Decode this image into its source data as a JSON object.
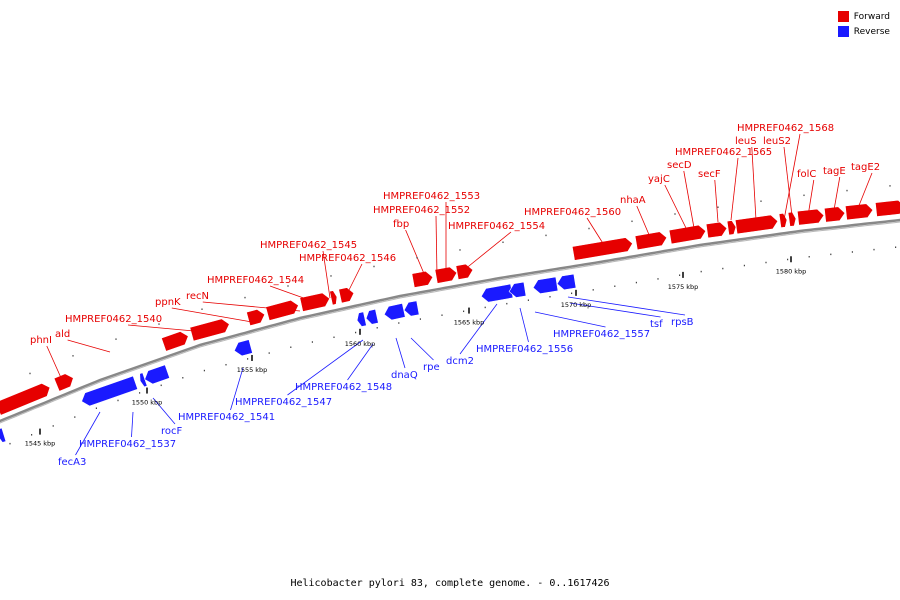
{
  "colors": {
    "forward": "#e60000",
    "reverse": "#1a1aff",
    "backbone": "#888888",
    "tick": "#000000"
  },
  "legend": {
    "forward_label": "Forward",
    "reverse_label": "Reverse"
  },
  "caption": "Helicobacter pylori 83, complete genome. - 0..1617426",
  "scale_labels": [
    "1545 kbp",
    "1550 kbp",
    "1555 kbp",
    "1560 kbp",
    "1565 kbp",
    "1570 kbp",
    "1575 kbp",
    "1580 kbp"
  ],
  "forward_gene_labels": [
    "phnI",
    "ald",
    "HMPREF0462_1540",
    "ppnK",
    "recN",
    "HMPREF0462_1544",
    "HMPREF0462_1545",
    "HMPREF0462_1546",
    "fbp",
    "HMPREF0462_1552",
    "HMPREF0462_1553",
    "HMPREF0462_1554",
    "HMPREF0462_1560",
    "nhaA",
    "yajC",
    "secD",
    "secF",
    "HMPREF0462_1565",
    "leuS",
    "HMPREF0462_1568",
    "leuS2",
    "folC",
    "tagE",
    "tagE2"
  ],
  "reverse_gene_labels": [
    "fecA3",
    "HMPREF0462_1537",
    "rocF",
    "HMPREF0462_1541",
    "HMPREF0462_1547",
    "HMPREF0462_1548",
    "dnaQ",
    "rpe",
    "dcm2",
    "HMPREF0462_1556",
    "HMPREF0462_1557",
    "tsf",
    "rpsB"
  ]
}
